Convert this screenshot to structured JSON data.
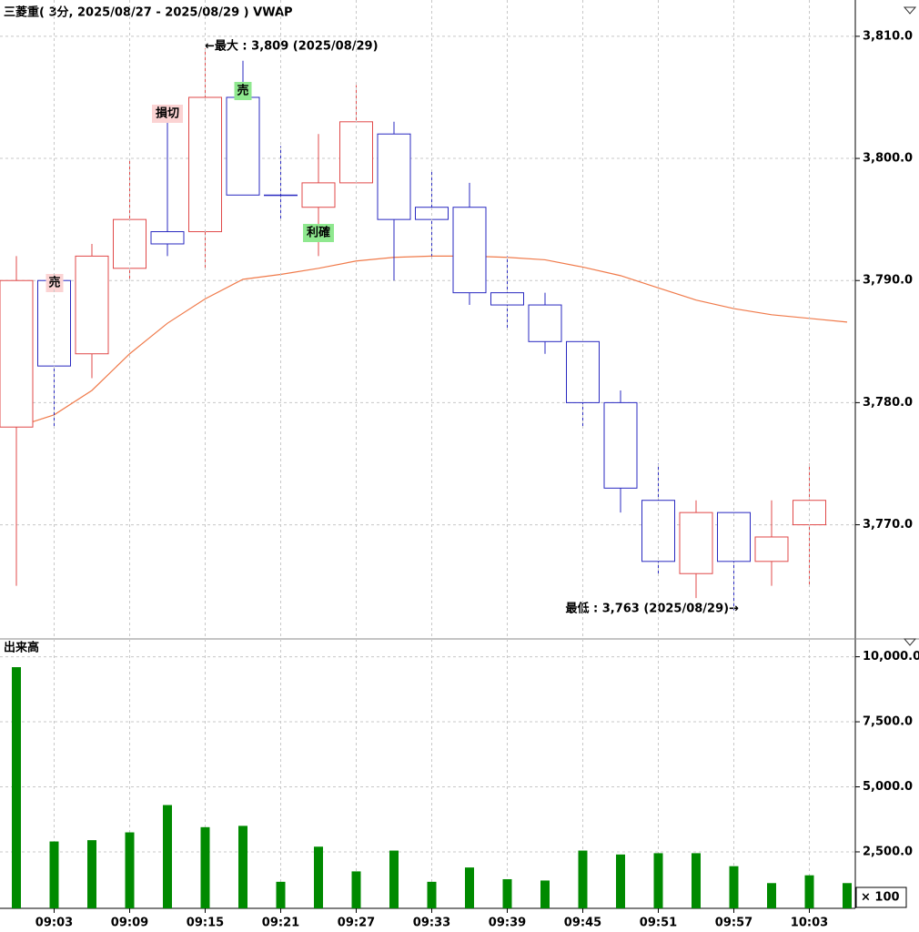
{
  "chart_data": [
    {
      "type": "candlestick",
      "title": "三菱重( 3分, 2025/08/27 - 2025/08/29 )  VWAP",
      "open": [
        3778,
        3790,
        3784,
        3791,
        3794,
        3794,
        3805,
        3797,
        3796,
        3798,
        3802,
        3796,
        3796,
        3789,
        3788,
        3785,
        3780,
        3772,
        3766,
        3771,
        3767,
        3770,
        null
      ],
      "high": [
        3792,
        3790,
        3793,
        3800,
        3804,
        3809,
        3808,
        3801,
        3802,
        3806,
        3803,
        3799,
        3798,
        3792,
        3789,
        3785,
        3781,
        3775,
        3772,
        3771,
        3772,
        3775,
        null
      ],
      "low": [
        3765,
        3778,
        3782,
        3790,
        3792,
        3791,
        3797,
        3795,
        3792,
        3798,
        3790,
        3792,
        3788,
        3786,
        3784,
        3778,
        3771,
        3766,
        3764,
        3763,
        3765,
        3765,
        null
      ],
      "close": [
        3790,
        3783,
        3792,
        3795,
        3793,
        3805,
        3797,
        3797,
        3798,
        3803,
        3795,
        3795,
        3789,
        3788,
        3785,
        3780,
        3773,
        3767,
        3771,
        3767,
        3769,
        3772,
        null
      ],
      "up_color": "#e04848",
      "down_color": "#2828c0",
      "series": [
        {
          "name": "VWAP",
          "color": "#f07a4a",
          "values": [
            3778,
            3779,
            3781,
            3784,
            3786.5,
            3788.5,
            3790.1,
            3790.5,
            3791,
            3791.6,
            3791.9,
            3792,
            3792,
            3791.9,
            3791.7,
            3791.1,
            3790.4,
            3789.4,
            3788.4,
            3787.7,
            3787.2,
            3786.9,
            3786.6
          ]
        }
      ],
      "ylim": [
        3760.8,
        3812.6
      ],
      "yticks": [
        {
          "value": 3770,
          "label": "3,770.0"
        },
        {
          "value": 3780,
          "label": "3,780.0"
        },
        {
          "value": 3790,
          "label": "3,790.0"
        },
        {
          "value": 3800,
          "label": "3,800.0"
        },
        {
          "value": 3810,
          "label": "3,810.0"
        }
      ],
      "grid": true,
      "annotations": [
        "←最大 : 3,809 (2025/08/29)",
        "最低 : 3,763 (2025/08/29)→"
      ],
      "signals": [
        {
          "text": "売",
          "color": "#fbd3d3"
        },
        {
          "text": "損切",
          "color": "#fbd3d3"
        },
        {
          "text": "売",
          "color": "#8fe88f"
        },
        {
          "text": "利確",
          "color": "#8fe88f"
        }
      ]
    },
    {
      "type": "bar",
      "title": "出来高",
      "categories": [
        null,
        "09:03",
        null,
        "09:09",
        null,
        "09:15",
        null,
        "09:21",
        null,
        "09:27",
        null,
        "09:33",
        null,
        "09:39",
        null,
        "09:45",
        null,
        "09:51",
        null,
        "09:57",
        null,
        "10:03",
        null
      ],
      "values": [
        9600,
        2900,
        2950,
        3250,
        4300,
        3450,
        3500,
        1350,
        2700,
        1750,
        2550,
        1350,
        1900,
        1450,
        1400,
        2550,
        2400,
        2450,
        2450,
        1950,
        1300,
        1600,
        1300
      ],
      "color": "#008a00",
      "ylim": [
        330,
        10580
      ],
      "yticks": [
        {
          "value": 2500,
          "label": "2,500.0"
        },
        {
          "value": 5000,
          "label": "5,000.0"
        },
        {
          "value": 7500,
          "label": "7,500.0"
        },
        {
          "value": 10000,
          "label": "10,000.0"
        }
      ],
      "grid": true,
      "unit": "× 100"
    }
  ]
}
